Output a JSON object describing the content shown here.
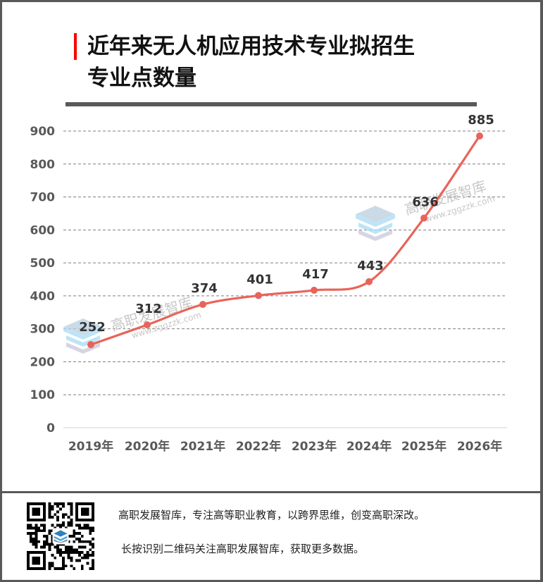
{
  "header": {
    "title_line1": "近年来无人机应用技术专业拟招生",
    "title_line2": "专业点数量",
    "accent_color": "#ff0000"
  },
  "chart_data": {
    "type": "line",
    "title": "近年来无人机应用技术专业拟招生专业点数量",
    "categories": [
      "2019年",
      "2020年",
      "2021年",
      "2022年",
      "2023年",
      "2024年",
      "2025年",
      "2026年"
    ],
    "series": [
      {
        "name": "专业点数量",
        "values": [
          252,
          312,
          374,
          401,
          417,
          443,
          636,
          885
        ],
        "color": "#e8645a"
      }
    ],
    "data_labels": [
      "252",
      "312",
      "374",
      "401",
      "417",
      "443",
      "636",
      "885"
    ],
    "y_ticks": [
      "0",
      "100",
      "200",
      "300",
      "400",
      "500",
      "600",
      "700",
      "800",
      "900"
    ],
    "xlabel": "",
    "ylabel": "",
    "ylim": [
      0,
      900
    ],
    "grid": "horizontal dashed",
    "legend": "none",
    "smooth": true
  },
  "watermark": {
    "name": "高职发展智库",
    "url": "www.zggzzk.com"
  },
  "footer": {
    "line1": "高职发展智库，专注高等职业教育，以跨界思维，创变高职深改。",
    "line2": "长按识别二维码关注高职发展智库，获取更多数据。",
    "qr_icon": "qr-code-icon"
  }
}
